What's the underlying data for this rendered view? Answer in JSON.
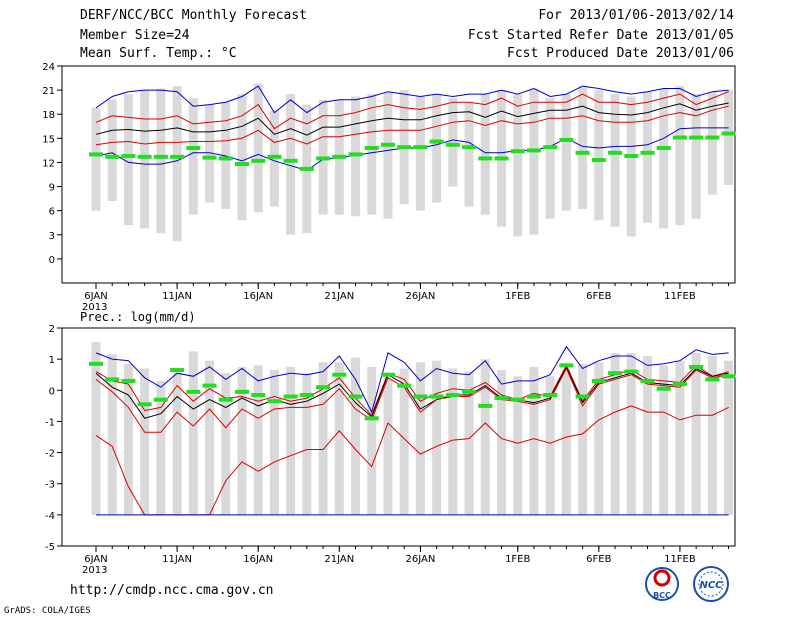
{
  "header": {
    "left1": "DERF/NCC/BCC Monthly Forecast",
    "left2": "Member Size=24",
    "left3": "Mean Surf. Temp.: °C",
    "right1": "For 2013/01/06-2013/02/14",
    "right2": "Fcst Started Refer Date 2013/01/05",
    "right3": "Fcst Produced Date 2013/01/06"
  },
  "footer": {
    "url": "http://cmdp.ncc.cma.gov.cn",
    "grads": "GrADS: COLA/IGES",
    "logo1": "BCC",
    "logo2": "NCC"
  },
  "colors": {
    "bar": "#d9d9d9",
    "green": "#22dd22",
    "red": "#dd0000",
    "blue": "#0000cc",
    "black": "#000000",
    "frame": "#000000"
  },
  "chart_data": [
    {
      "type": "line",
      "title": "Mean Surf. Temp.: °C",
      "x_tick_labels": [
        "6JAN",
        "11JAN",
        "16JAN",
        "21JAN",
        "26JAN",
        "1FEB",
        "6FEB",
        "11FEB"
      ],
      "x_tick_days": [
        0,
        5,
        10,
        15,
        20,
        26,
        31,
        36
      ],
      "x_year_label": "2013",
      "ylim": [
        -3,
        24
      ],
      "y_ticks": [
        0,
        3,
        6,
        9,
        12,
        15,
        18,
        21,
        24
      ],
      "days": 40,
      "bar_low": [
        6,
        7.2,
        4.2,
        3.8,
        3.2,
        2.2,
        5.5,
        7,
        6.2,
        4.8,
        5.8,
        6.5,
        3,
        3.2,
        5.5,
        5.5,
        5.3,
        5.5,
        5,
        6.8,
        6,
        7,
        9,
        6.5,
        5.5,
        4,
        2.8,
        3,
        5,
        6,
        6.2,
        4.8,
        4,
        2.8,
        4.5,
        3.8,
        4.2,
        5,
        8,
        9.2
      ],
      "bar_high": [
        18.8,
        19.8,
        20.5,
        21,
        21.2,
        21.5,
        20,
        19.2,
        19.5,
        20.5,
        21.8,
        18.5,
        20.5,
        19.2,
        19.8,
        19.8,
        20.2,
        20.5,
        20.8,
        21,
        20.2,
        20.5,
        20,
        19.5,
        20.5,
        21,
        20.5,
        21.2,
        20,
        20.5,
        21.5,
        21,
        20.5,
        20.2,
        20.8,
        21.2,
        21.5,
        20.5,
        20.8,
        21
      ],
      "bar_high2": [
        null,
        null,
        null,
        null,
        null,
        null,
        null,
        null,
        null,
        null,
        null,
        null,
        null,
        null,
        null,
        null,
        null,
        null,
        null,
        null,
        null,
        null,
        null,
        null,
        null,
        null,
        null,
        null,
        null,
        null,
        null,
        null,
        null,
        null,
        null,
        null,
        null,
        20.2,
        20.8,
        21.5
      ],
      "bar_low2": [
        null,
        null,
        null,
        null,
        null,
        null,
        null,
        null,
        null,
        null,
        null,
        null,
        null,
        null,
        null,
        null,
        null,
        null,
        null,
        null,
        null,
        null,
        null,
        null,
        null,
        null,
        null,
        null,
        null,
        null,
        null,
        null,
        null,
        null,
        null,
        null,
        null,
        8.5,
        8.5,
        8.6
      ],
      "green_marks": [
        13,
        12.7,
        12.8,
        12.7,
        12.7,
        12.7,
        13.8,
        12.6,
        12.5,
        11.8,
        12.2,
        12.7,
        12.2,
        11.2,
        12.5,
        12.7,
        13,
        13.8,
        14.2,
        13.9,
        13.9,
        14.6,
        14.2,
        13.9,
        12.5,
        12.5,
        13.4,
        13.5,
        13.9,
        14.8,
        13.2,
        12.3,
        13.2,
        12.8,
        13.2,
        13.8,
        15.1,
        15.1,
        15.1,
        15.6
      ],
      "series": [
        {
          "name": "max",
          "color": "#0000cc",
          "values": [
            18.8,
            20.2,
            20.8,
            21,
            21,
            20.8,
            19,
            19.2,
            19.5,
            20.2,
            21.5,
            18.2,
            19.8,
            18.2,
            19.5,
            19.8,
            19.8,
            20.2,
            20.8,
            20.5,
            20.2,
            20.5,
            20.2,
            20.5,
            20.5,
            21,
            20.5,
            21.2,
            20.2,
            20.5,
            21.5,
            21.2,
            20.8,
            20.5,
            20.8,
            21.2,
            21.2,
            20.2,
            20.8,
            21
          ]
        },
        {
          "name": "upper",
          "color": "#dd0000",
          "values": [
            17,
            17.8,
            17.6,
            17.4,
            17.4,
            17.8,
            16.8,
            17,
            17.2,
            17.8,
            19.2,
            16.2,
            17.5,
            16.8,
            17.8,
            17.8,
            18.2,
            18.8,
            19.2,
            18.8,
            18.6,
            19,
            19.5,
            19.5,
            19.2,
            20,
            19,
            19.5,
            19.5,
            19.5,
            20.5,
            19.5,
            19.5,
            19.2,
            19.5,
            20,
            20.5,
            19.2,
            20,
            20.8
          ]
        },
        {
          "name": "mean",
          "color": "#000000",
          "values": [
            15.5,
            16,
            16.1,
            15.9,
            16,
            16.3,
            15.8,
            15.8,
            16,
            16.5,
            17.5,
            15.5,
            16.2,
            15.4,
            16.4,
            16.4,
            16.8,
            17.2,
            17.5,
            17.3,
            17.3,
            17.8,
            18.2,
            18.3,
            17.6,
            18.4,
            17.7,
            18.1,
            18.5,
            18.5,
            19,
            18.2,
            18,
            17.9,
            18.2,
            18.8,
            19.3,
            18.5,
            19,
            19.4
          ]
        },
        {
          "name": "lower",
          "color": "#dd0000",
          "values": [
            14.2,
            14.5,
            14.6,
            14.3,
            14.5,
            14.5,
            14.6,
            14.6,
            14.7,
            15,
            16,
            14.5,
            15,
            14.3,
            15.2,
            15.2,
            15.5,
            15.8,
            16,
            16,
            16,
            16.5,
            17,
            17.2,
            16.6,
            17.2,
            16.8,
            17,
            17.5,
            17.5,
            17.8,
            17.2,
            17,
            17,
            17.2,
            17.8,
            18.2,
            17.8,
            18.5,
            19
          ]
        },
        {
          "name": "min",
          "color": "#0000cc",
          "values": [
            12.8,
            13.2,
            12,
            11.8,
            11.8,
            12.2,
            13.2,
            13.2,
            12.8,
            12.2,
            13,
            12.2,
            11.6,
            11,
            12.4,
            12.6,
            12.9,
            13.2,
            13.5,
            13.8,
            13.8,
            14.2,
            14.8,
            14.5,
            13.2,
            13.2,
            13.5,
            13.5,
            14,
            15,
            14,
            13.8,
            14,
            14,
            14.2,
            15,
            16.2,
            16.3,
            16.3,
            16.3
          ]
        }
      ]
    },
    {
      "type": "line",
      "title": "Prec.: log(mm/d)",
      "x_tick_labels": [
        "6JAN",
        "11JAN",
        "16JAN",
        "21JAN",
        "26JAN",
        "1FEB",
        "6FEB",
        "11FEB"
      ],
      "x_tick_days": [
        0,
        5,
        10,
        15,
        20,
        26,
        31,
        36
      ],
      "x_year_label": "2013",
      "ylim": [
        -5,
        2
      ],
      "y_ticks": [
        -5,
        -4,
        -3,
        -2,
        -1,
        0,
        1,
        2
      ],
      "days": 40,
      "bar_base": -4,
      "bar_high": [
        1.55,
        1.15,
        0.85,
        0.7,
        0.3,
        0.55,
        1.25,
        0.95,
        0.55,
        0.75,
        0.8,
        0.65,
        0.75,
        0.55,
        0.9,
        0.9,
        1.05,
        0.75,
        0.35,
        0.7,
        0.9,
        0.95,
        0.7,
        0.6,
        1,
        0.65,
        0.45,
        0.75,
        0.45,
        0.65,
        0.85,
        0.9,
        1.2,
        1.2,
        1.1,
        0.8,
        0.95,
        1.2,
        1.1,
        0.95
      ],
      "green_marks": [
        0.85,
        0.35,
        0.3,
        -0.45,
        -0.3,
        0.65,
        -0.05,
        0.15,
        -0.3,
        -0.05,
        -0.15,
        -0.35,
        -0.2,
        -0.15,
        0.1,
        0.5,
        -0.2,
        -0.9,
        0.5,
        0.15,
        -0.2,
        -0.2,
        -0.15,
        -0.05,
        -0.5,
        -0.25,
        -0.3,
        -0.2,
        -0.15,
        0.8,
        -0.2,
        0.3,
        0.55,
        0.6,
        0.3,
        0.05,
        0.2,
        0.75,
        0.35,
        0.45
      ],
      "series": [
        {
          "name": "max",
          "color": "#0000cc",
          "values": [
            1.2,
            1,
            0.95,
            0.4,
            0.1,
            0.55,
            0.45,
            0.75,
            0.35,
            0.7,
            0.3,
            0.45,
            0.55,
            0.5,
            0.6,
            1.1,
            0.35,
            -0.7,
            1.2,
            0.9,
            0.3,
            0.7,
            0.55,
            0.5,
            0.95,
            0.2,
            0.3,
            0.3,
            0.5,
            1.4,
            0.7,
            0.95,
            1.1,
            1.1,
            0.8,
            0.85,
            0.95,
            1.3,
            1.15,
            1.2
          ]
        },
        {
          "name": "upper",
          "color": "#dd0000",
          "values": [
            0.6,
            0.3,
            0.2,
            -0.65,
            -0.55,
            0.15,
            -0.35,
            0.05,
            -0.25,
            -0.2,
            -0.35,
            -0.2,
            -0.35,
            -0.25,
            0.05,
            0.4,
            -0.25,
            -0.8,
            0.55,
            0.35,
            -0.35,
            -0.1,
            0.05,
            0,
            0.25,
            -0.15,
            -0.3,
            -0.1,
            -0.2,
            0.8,
            -0.35,
            0.35,
            0.5,
            0.65,
            0.35,
            0.3,
            0.25,
            0.8,
            0.45,
            0.6
          ]
        },
        {
          "name": "mean",
          "color": "#000000",
          "values": [
            0.55,
            0.1,
            -0.15,
            -0.9,
            -0.75,
            -0.2,
            -0.6,
            -0.3,
            -0.55,
            -0.25,
            -0.5,
            -0.3,
            -0.45,
            -0.35,
            -0.1,
            0.2,
            -0.4,
            -0.85,
            0.5,
            0.2,
            -0.6,
            -0.3,
            -0.15,
            -0.15,
            0.15,
            -0.25,
            -0.3,
            -0.4,
            -0.25,
            0.75,
            -0.4,
            0.25,
            0.4,
            0.55,
            0.25,
            0.2,
            0.15,
            0.7,
            0.45,
            0.55
          ]
        },
        {
          "name": "lower",
          "color": "#dd0000",
          "values": [
            0.35,
            -0.05,
            -0.55,
            -1.35,
            -1.35,
            -0.7,
            -1.15,
            -0.6,
            -1.2,
            -0.6,
            -0.9,
            -0.6,
            -0.55,
            -0.55,
            -0.45,
            0.05,
            -0.6,
            -0.95,
            0.4,
            0.1,
            -0.7,
            -0.3,
            -0.2,
            -0.2,
            0.1,
            -0.3,
            -0.35,
            -0.45,
            -0.3,
            0.7,
            -0.5,
            0.2,
            0.35,
            0.5,
            0.2,
            0.15,
            0.1,
            0.65,
            0.4,
            0.5
          ]
        },
        {
          "name": "min",
          "color": "#dd0000",
          "values": [
            -1.45,
            -1.8,
            -3.1,
            -4,
            -4,
            -4,
            -4,
            -4,
            -2.9,
            -2.3,
            -2.6,
            -2.3,
            -2.1,
            -1.9,
            -1.9,
            -1.3,
            -1.9,
            -2.45,
            -1.05,
            -1.55,
            -2.05,
            -1.8,
            -1.6,
            -1.55,
            -1.05,
            -1.55,
            -1.7,
            -1.55,
            -1.7,
            -1.5,
            -1.4,
            -0.95,
            -0.7,
            -0.5,
            -0.7,
            -0.7,
            -0.95,
            -0.8,
            -0.8,
            -0.55
          ]
        },
        {
          "name": "floor",
          "color": "#0000cc",
          "values": [
            -4,
            -4,
            -4,
            -4,
            -4,
            -4,
            -4,
            -4,
            -4,
            -4,
            -4,
            -4,
            -4,
            -4,
            -4,
            -4,
            -4,
            -4,
            -4,
            -4,
            -4,
            -4,
            -4,
            -4,
            -4,
            -4,
            -4,
            -4,
            -4,
            -4,
            -4,
            -4,
            -4,
            -4,
            -4,
            -4,
            -4,
            -4,
            -4,
            -4
          ]
        }
      ]
    }
  ]
}
